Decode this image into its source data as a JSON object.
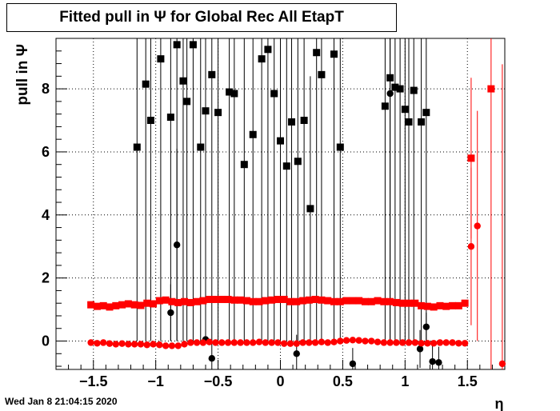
{
  "chart_data": {
    "type": "scatter",
    "title": "Fitted pull in  Ψ  for Global Rec All EtapT",
    "xlabel": "η",
    "ylabel": "pull in  Ψ",
    "xlim": [
      -1.8,
      1.8
    ],
    "ylim": [
      -0.9,
      9.6
    ],
    "x_ticks": [
      -1.5,
      -1,
      -0.5,
      0,
      0.5,
      1,
      1.5
    ],
    "x_tick_labels": [
      "−1.5",
      "−1",
      "−0.5",
      "0",
      "0.5",
      "1",
      "1.5"
    ],
    "y_ticks": [
      0,
      2,
      4,
      6,
      8
    ],
    "y_tick_labels": [
      "0",
      "2",
      "4",
      "6",
      "8"
    ],
    "grid": true,
    "series": [
      {
        "color": "#000000",
        "marker": "square",
        "points": [
          [
            -1.15,
            6.15,
            6.15
          ],
          [
            -1.08,
            8.15,
            8.15
          ],
          [
            -1.04,
            7.0,
            7.0
          ],
          [
            -0.96,
            8.95,
            8.95
          ],
          [
            -0.88,
            7.1,
            7.1
          ],
          [
            -0.83,
            9.4,
            9.4
          ],
          [
            -0.78,
            8.25,
            8.25
          ],
          [
            -0.75,
            7.6,
            7.6
          ],
          [
            -0.7,
            9.4,
            9.4
          ],
          [
            -0.64,
            6.15,
            6.15
          ],
          [
            -0.6,
            7.3,
            7.3
          ],
          [
            -0.55,
            8.45,
            8.45
          ],
          [
            -0.5,
            7.25,
            7.25
          ],
          [
            -0.41,
            7.9,
            7.9
          ],
          [
            -0.37,
            7.85,
            7.85
          ],
          [
            -0.29,
            5.6,
            5.6
          ],
          [
            -0.22,
            6.55,
            6.55
          ],
          [
            -0.15,
            8.95,
            8.95
          ],
          [
            -0.1,
            9.25,
            9.25
          ],
          [
            -0.05,
            7.85,
            7.85
          ],
          [
            0.0,
            6.35,
            6.35
          ],
          [
            0.05,
            5.55,
            5.55
          ],
          [
            0.09,
            6.95,
            6.95
          ],
          [
            0.14,
            5.7,
            5.7
          ],
          [
            0.19,
            7.0,
            7.0
          ],
          [
            0.24,
            4.2,
            4.2
          ],
          [
            0.29,
            9.15,
            9.15
          ],
          [
            0.33,
            8.45,
            8.45
          ],
          [
            0.43,
            9.1,
            9.1
          ],
          [
            0.48,
            6.15,
            6.15
          ],
          [
            0.84,
            7.45,
            7.45
          ],
          [
            0.88,
            8.35,
            8.35
          ],
          [
            0.92,
            8.05,
            8.05
          ],
          [
            0.96,
            8.0,
            8.0
          ],
          [
            1.0,
            7.35,
            7.35
          ],
          [
            1.03,
            6.95,
            6.95
          ],
          [
            1.07,
            7.95,
            7.95
          ],
          [
            1.13,
            6.95,
            6.95
          ],
          [
            1.17,
            7.25,
            7.25
          ]
        ]
      },
      {
        "color": "#000000",
        "marker": "circle",
        "points": [
          [
            -0.83,
            3.05,
            3.05
          ],
          [
            -0.88,
            0.9,
            0.9
          ],
          [
            -0.6,
            0.05,
            0.05
          ],
          [
            -0.55,
            -0.55,
            0.6
          ],
          [
            0.13,
            -0.4,
            0.6
          ],
          [
            0.58,
            -0.72,
            0.5
          ],
          [
            0.88,
            7.85,
            7.85
          ],
          [
            1.12,
            -0.25,
            0.6
          ],
          [
            1.17,
            0.45,
            0.45
          ],
          [
            1.22,
            -0.65,
            0.5
          ],
          [
            1.27,
            -0.68,
            0.5
          ]
        ]
      },
      {
        "color": "#ff0000",
        "marker": "square",
        "points": [
          [
            -1.52,
            1.15,
            0.05
          ],
          [
            -1.47,
            1.1,
            0.05
          ],
          [
            -1.42,
            1.12,
            0.05
          ],
          [
            -1.37,
            1.08,
            0.05
          ],
          [
            -1.32,
            1.12,
            0.05
          ],
          [
            -1.27,
            1.15,
            0.05
          ],
          [
            -1.22,
            1.18,
            0.05
          ],
          [
            -1.17,
            1.15,
            0.05
          ],
          [
            -1.12,
            1.13,
            0.05
          ],
          [
            -1.07,
            1.2,
            0.05
          ],
          [
            -1.02,
            1.18,
            0.05
          ],
          [
            -0.97,
            1.28,
            0.05
          ],
          [
            -0.92,
            1.3,
            0.05
          ],
          [
            -0.87,
            1.25,
            0.05
          ],
          [
            -0.82,
            1.22,
            0.05
          ],
          [
            -0.77,
            1.25,
            0.05
          ],
          [
            -0.72,
            1.22,
            0.05
          ],
          [
            -0.67,
            1.25,
            0.05
          ],
          [
            -0.62,
            1.28,
            0.05
          ],
          [
            -0.57,
            1.32,
            0.05
          ],
          [
            -0.52,
            1.32,
            0.05
          ],
          [
            -0.47,
            1.32,
            0.05
          ],
          [
            -0.42,
            1.32,
            0.05
          ],
          [
            -0.37,
            1.3,
            0.05
          ],
          [
            -0.32,
            1.3,
            0.05
          ],
          [
            -0.27,
            1.28,
            0.05
          ],
          [
            -0.22,
            1.25,
            0.05
          ],
          [
            -0.17,
            1.25,
            0.05
          ],
          [
            -0.12,
            1.28,
            0.05
          ],
          [
            -0.07,
            1.3,
            0.05
          ],
          [
            -0.02,
            1.32,
            0.05
          ],
          [
            0.03,
            1.32,
            0.05
          ],
          [
            0.08,
            1.25,
            0.05
          ],
          [
            0.13,
            1.25,
            0.05
          ],
          [
            0.18,
            1.28,
            0.05
          ],
          [
            0.23,
            1.3,
            0.05
          ],
          [
            0.28,
            1.32,
            0.05
          ],
          [
            0.33,
            1.3,
            0.05
          ],
          [
            0.38,
            1.28,
            0.05
          ],
          [
            0.43,
            1.25,
            0.05
          ],
          [
            0.48,
            1.25,
            0.05
          ],
          [
            0.53,
            1.28,
            0.05
          ],
          [
            0.58,
            1.28,
            0.05
          ],
          [
            0.63,
            1.28,
            0.05
          ],
          [
            0.68,
            1.25,
            0.05
          ],
          [
            0.73,
            1.25,
            0.05
          ],
          [
            0.78,
            1.28,
            0.05
          ],
          [
            0.83,
            1.25,
            0.05
          ],
          [
            0.88,
            1.25,
            0.05
          ],
          [
            0.93,
            1.22,
            0.05
          ],
          [
            0.98,
            1.2,
            0.05
          ],
          [
            1.03,
            1.2,
            0.05
          ],
          [
            1.08,
            1.2,
            0.05
          ],
          [
            1.13,
            1.12,
            0.05
          ],
          [
            1.18,
            1.1,
            0.05
          ],
          [
            1.23,
            1.08,
            0.05
          ],
          [
            1.28,
            1.12,
            0.05
          ],
          [
            1.33,
            1.1,
            0.05
          ],
          [
            1.38,
            1.12,
            0.05
          ],
          [
            1.43,
            1.12,
            0.05
          ],
          [
            1.48,
            1.2,
            0.05
          ],
          [
            1.53,
            5.8,
            2.55
          ],
          [
            1.69,
            8.0,
            9.5
          ]
        ]
      },
      {
        "color": "#ff0000",
        "marker": "circle",
        "points": [
          [
            -1.52,
            -0.05,
            0.05
          ],
          [
            -1.47,
            -0.07,
            0.05
          ],
          [
            -1.42,
            -0.05,
            0.05
          ],
          [
            -1.37,
            -0.08,
            0.05
          ],
          [
            -1.32,
            -0.1,
            0.05
          ],
          [
            -1.27,
            -0.08,
            0.05
          ],
          [
            -1.22,
            -0.1,
            0.05
          ],
          [
            -1.17,
            -0.1,
            0.05
          ],
          [
            -1.12,
            -0.1,
            0.05
          ],
          [
            -1.07,
            -0.12,
            0.05
          ],
          [
            -1.02,
            -0.1,
            0.05
          ],
          [
            -0.97,
            -0.12,
            0.05
          ],
          [
            -0.92,
            -0.15,
            0.05
          ],
          [
            -0.87,
            -0.15,
            0.05
          ],
          [
            -0.82,
            -0.15,
            0.05
          ],
          [
            -0.77,
            -0.1,
            0.05
          ],
          [
            -0.72,
            -0.05,
            0.05
          ],
          [
            -0.67,
            -0.05,
            0.05
          ],
          [
            -0.62,
            -0.05,
            0.05
          ],
          [
            -0.57,
            -0.03,
            0.05
          ],
          [
            -0.52,
            -0.05,
            0.05
          ],
          [
            -0.47,
            -0.05,
            0.05
          ],
          [
            -0.42,
            -0.05,
            0.05
          ],
          [
            -0.37,
            -0.05,
            0.05
          ],
          [
            -0.32,
            -0.05,
            0.05
          ],
          [
            -0.27,
            -0.05,
            0.05
          ],
          [
            -0.22,
            -0.05,
            0.05
          ],
          [
            -0.17,
            -0.03,
            0.05
          ],
          [
            -0.12,
            -0.05,
            0.05
          ],
          [
            -0.07,
            -0.05,
            0.05
          ],
          [
            -0.02,
            -0.05,
            0.05
          ],
          [
            0.03,
            -0.08,
            0.05
          ],
          [
            0.08,
            -0.08,
            0.05
          ],
          [
            0.13,
            -0.08,
            0.05
          ],
          [
            0.18,
            -0.05,
            0.05
          ],
          [
            0.23,
            -0.05,
            0.05
          ],
          [
            0.28,
            -0.05,
            0.05
          ],
          [
            0.33,
            -0.03,
            0.05
          ],
          [
            0.38,
            -0.05,
            0.05
          ],
          [
            0.43,
            -0.03,
            0.05
          ],
          [
            0.48,
            0.0,
            0.05
          ],
          [
            0.53,
            0.02,
            0.05
          ],
          [
            0.58,
            0.03,
            0.05
          ],
          [
            0.63,
            0.02,
            0.05
          ],
          [
            0.68,
            0.0,
            0.05
          ],
          [
            0.73,
            0.0,
            0.05
          ],
          [
            0.78,
            -0.03,
            0.05
          ],
          [
            0.83,
            -0.05,
            0.05
          ],
          [
            0.88,
            -0.05,
            0.05
          ],
          [
            0.93,
            -0.05,
            0.05
          ],
          [
            0.98,
            -0.05,
            0.05
          ],
          [
            1.03,
            -0.05,
            0.05
          ],
          [
            1.08,
            -0.05,
            0.05
          ],
          [
            1.13,
            -0.07,
            0.05
          ],
          [
            1.18,
            -0.07,
            0.05
          ],
          [
            1.23,
            -0.07,
            0.05
          ],
          [
            1.28,
            -0.05,
            0.05
          ],
          [
            1.33,
            -0.05,
            0.05
          ],
          [
            1.38,
            -0.05,
            0.05
          ],
          [
            1.43,
            -0.07,
            0.05
          ],
          [
            1.48,
            -0.07,
            0.05
          ],
          [
            1.53,
            3.0,
            2.5
          ],
          [
            1.58,
            3.65,
            3.65
          ],
          [
            1.78,
            -0.72,
            9.5
          ]
        ]
      }
    ]
  },
  "footer": {
    "timestamp": "Wed Jan  8 21:04:15 2020"
  }
}
